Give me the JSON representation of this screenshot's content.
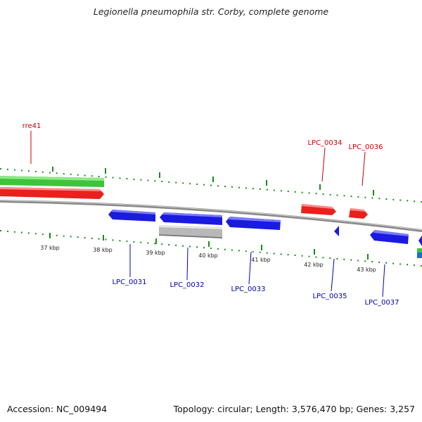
{
  "title": "Legionella pneumophila str. Corby, complete genome",
  "footer": {
    "accession": "Accession: NC_009494",
    "summary": "Topology: circular; Length: 3,576,470 bp; Genes: 3,257"
  },
  "colors": {
    "forward_gene": "#e8201e",
    "reverse_gene": "#1a1ae0",
    "rna_feature": "#3ec43a",
    "pseudo_gene": "#b8b8b8",
    "backbone": "#8a8a8a",
    "tick": "#1a8a1a",
    "forward_label": "#cc0000",
    "reverse_label": "#0000b0"
  },
  "scale_ticks": [
    "37 kbp",
    "38 kbp",
    "39 kbp",
    "40 kbp",
    "41 kbp",
    "42 kbp",
    "43 kbp"
  ],
  "forward_labels": [
    "rre41",
    "LPC_0034",
    "LPC_0036"
  ],
  "reverse_labels": [
    "LPC_0031",
    "LPC_0032",
    "LPC_0033",
    "LPC_0035",
    "LPC_0037"
  ]
}
